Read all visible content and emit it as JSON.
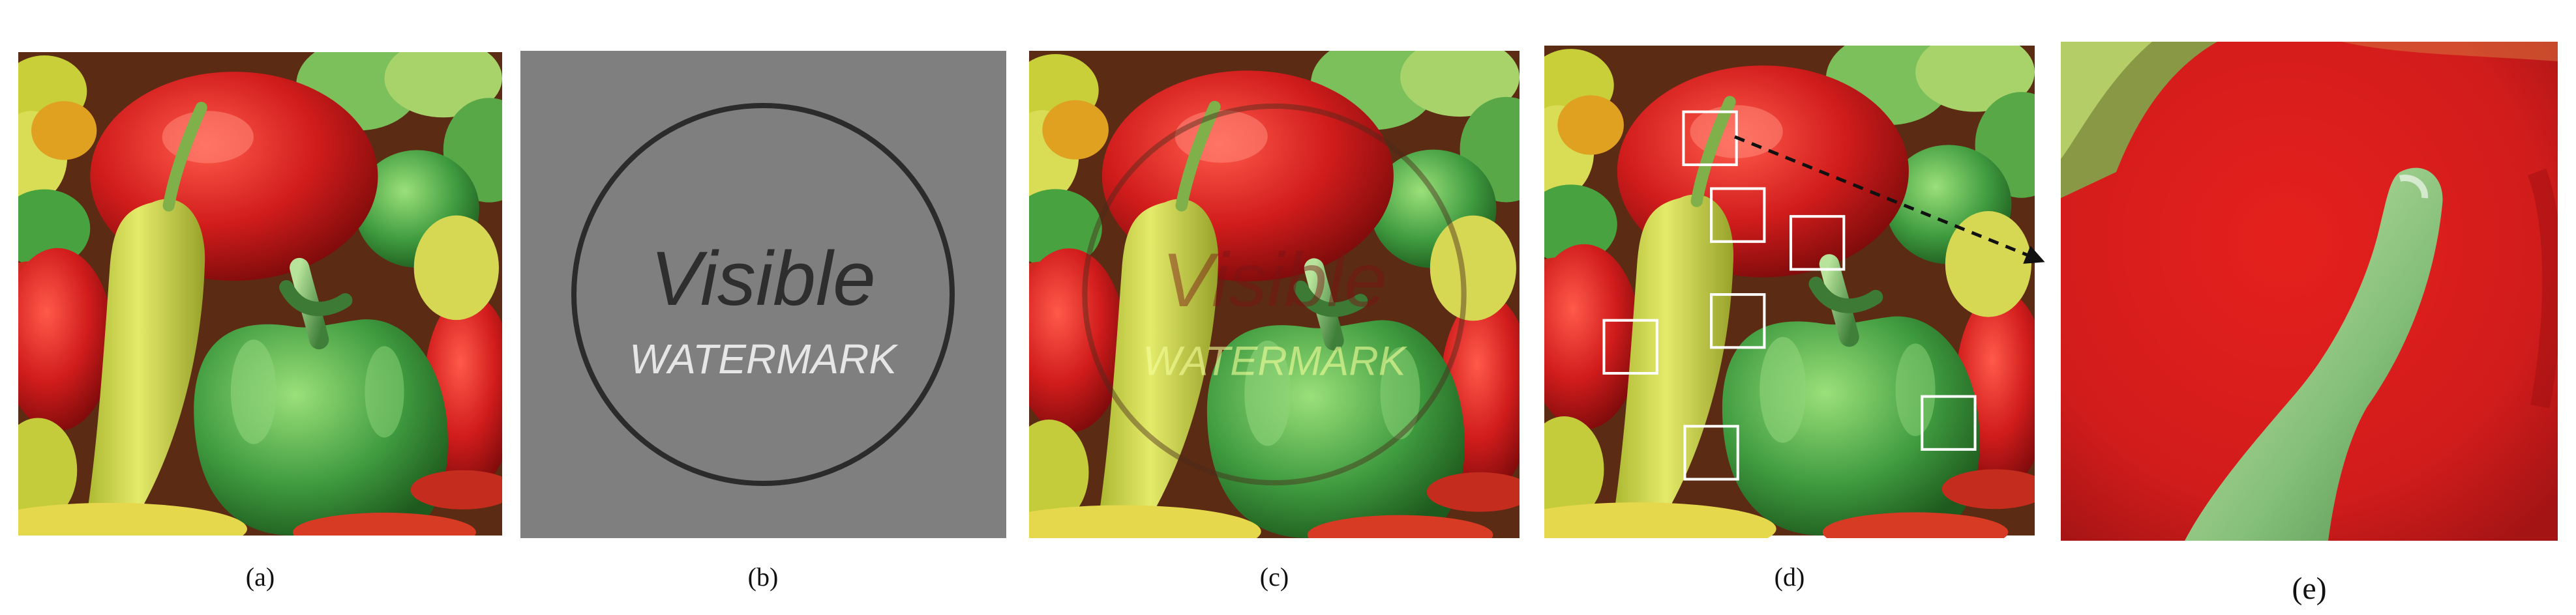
{
  "figure": {
    "panels": [
      {
        "id": "a",
        "caption": "(a)",
        "content": "peppers-original"
      },
      {
        "id": "b",
        "caption": "(b)",
        "content": "watermark-image"
      },
      {
        "id": "c",
        "caption": "(c)",
        "content": "watermarked-peppers"
      },
      {
        "id": "d",
        "caption": "(d)",
        "content": "peppers-with-selected-blocks"
      },
      {
        "id": "e",
        "caption": "(e)",
        "content": "zoomed-block"
      }
    ],
    "watermark": {
      "line1": "Visible",
      "line2": "WATERMARK"
    },
    "colors": {
      "background": "#ffffff",
      "watermark_gray": "#7f7f7f",
      "circle": "#2b2b2b",
      "text_dark": "#2e2e2e",
      "text_light": "#e6e6e6",
      "pepper_red": "#d11c1c",
      "pepper_green": "#3f9b3f",
      "pepper_yellow": "#d9de56",
      "block_outline": "#ffffff",
      "arrow": "#111111"
    }
  }
}
